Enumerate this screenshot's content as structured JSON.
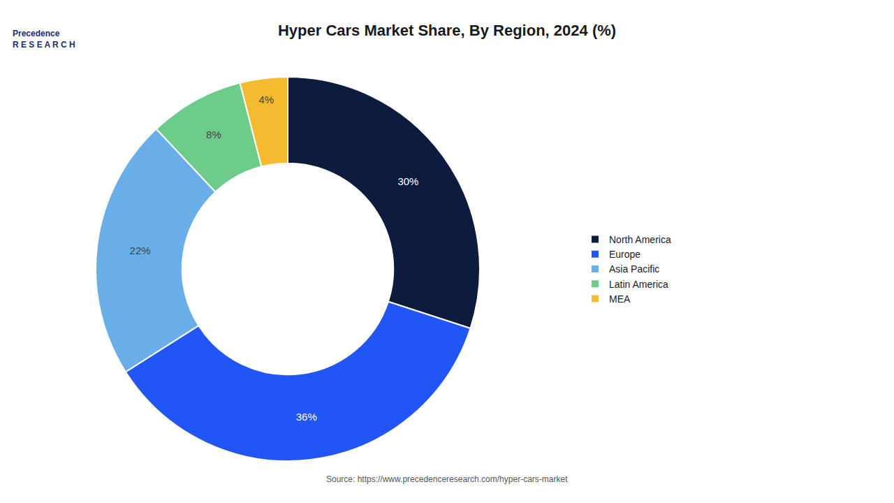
{
  "chart_data": {
    "type": "donut",
    "title": "Hyper Cars Market Share, By Region, 2024 (%)",
    "categories": [
      "North America",
      "Europe",
      "Asia Pacific",
      "Latin America",
      "MEA"
    ],
    "values": [
      30,
      36,
      22,
      8,
      4
    ],
    "value_labels": [
      "30%",
      "36%",
      "22%",
      "8%",
      "4%"
    ],
    "colors": [
      "#0d1b3e",
      "#2255f5",
      "#6aaee8",
      "#6dcc8a",
      "#f5bb30"
    ],
    "data_labels": true,
    "legend": "right",
    "annotations": [
      "Precedence\nR E S E A R C H",
      "Source: https://www.precedenceresearch.com/hyper-cars-market"
    ]
  }
}
